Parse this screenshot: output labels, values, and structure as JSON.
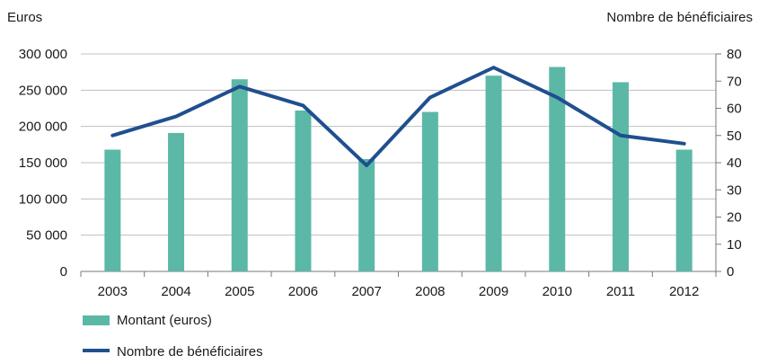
{
  "chart_data": {
    "type": "bar",
    "left_axis_label": "Euros",
    "right_axis_label": "Nombre de bénéficiaires",
    "categories": [
      "2003",
      "2004",
      "2005",
      "2006",
      "2007",
      "2008",
      "2009",
      "2010",
      "2011",
      "2012"
    ],
    "series": [
      {
        "name": "Montant (euros)",
        "type": "bar",
        "axis": "left",
        "color": "#5bb8a6",
        "values": [
          168000,
          191000,
          265000,
          222000,
          155000,
          220000,
          270000,
          282000,
          261000,
          168000
        ]
      },
      {
        "name": "Nombre de bénéficiaires",
        "type": "line",
        "axis": "right",
        "color": "#1f4f8f",
        "values": [
          50,
          57,
          68,
          61,
          39,
          64,
          75,
          64,
          50,
          47
        ]
      }
    ],
    "left_axis": {
      "min": 0,
      "max": 300000,
      "ticks": [
        0,
        50000,
        100000,
        150000,
        200000,
        250000,
        300000
      ],
      "tick_labels": [
        "0",
        "50 000",
        "100 000",
        "150 000",
        "200 000",
        "250 000",
        "300 000"
      ]
    },
    "right_axis": {
      "min": 0,
      "max": 80,
      "ticks": [
        0,
        10,
        20,
        30,
        40,
        50,
        60,
        70,
        80
      ],
      "tick_labels": [
        "0",
        "10",
        "20",
        "30",
        "40",
        "50",
        "60",
        "70",
        "80"
      ]
    },
    "grid": true,
    "legend": "bottom-left",
    "colors": {
      "bars": "#5bb8a6",
      "line": "#1f4f8f",
      "grid": "#bfbfbf",
      "axis": "#7a7a7a"
    }
  }
}
